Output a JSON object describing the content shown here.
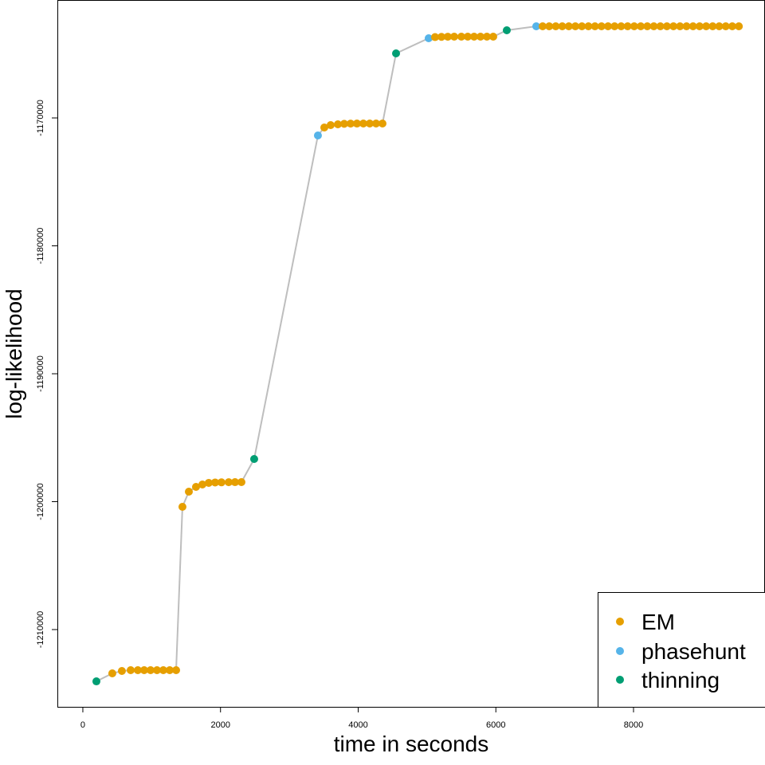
{
  "chart_data": {
    "type": "scatter",
    "title": "",
    "xlabel": "time in seconds",
    "ylabel": "log-likelihood",
    "xlim": [
      -370,
      9910
    ],
    "ylim": [
      -1216040,
      -1160780
    ],
    "xticks": [
      0,
      2000,
      4000,
      6000,
      8000
    ],
    "xtick_labels": [
      "0",
      "2000",
      "4000",
      "6000",
      "8000"
    ],
    "yticks": [
      -1210000,
      -1200000,
      -1190000,
      -1180000,
      -1170000
    ],
    "ytick_labels": [
      "-1210000",
      "-1200000",
      "-1190000",
      "-1180000",
      "-1170000"
    ],
    "grid": false,
    "line_color": "#bebebe",
    "legend": {
      "placement": "bottom-right",
      "entries": [
        {
          "label": "EM",
          "color": "#E69F00"
        },
        {
          "label": "phasehunt",
          "color": "#56B4E9"
        },
        {
          "label": "thinning",
          "color": "#009E73"
        }
      ]
    },
    "points": [
      [
        197,
        -1214050,
        "thinning"
      ],
      [
        428,
        -1213425,
        "EM"
      ],
      [
        567,
        -1213237,
        "EM"
      ],
      [
        695,
        -1213174,
        "EM"
      ],
      [
        799,
        -1213174,
        "EM"
      ],
      [
        891,
        -1213174,
        "EM"
      ],
      [
        984,
        -1213174,
        "EM"
      ],
      [
        1077,
        -1213174,
        "EM"
      ],
      [
        1169,
        -1213174,
        "EM"
      ],
      [
        1262,
        -1213174,
        "EM"
      ],
      [
        1355,
        -1213174,
        "EM"
      ],
      [
        1447,
        -1200402,
        "EM"
      ],
      [
        1540,
        -1199219,
        "EM"
      ],
      [
        1644,
        -1198845,
        "EM"
      ],
      [
        1737,
        -1198658,
        "EM"
      ],
      [
        1829,
        -1198530,
        "EM"
      ],
      [
        1922,
        -1198500,
        "EM"
      ],
      [
        2014,
        -1198490,
        "EM"
      ],
      [
        2119,
        -1198480,
        "EM"
      ],
      [
        2211,
        -1198475,
        "EM"
      ],
      [
        2304,
        -1198471,
        "EM"
      ],
      [
        2489,
        -1196664,
        "thinning"
      ],
      [
        3415,
        -1171371,
        "phasehunt"
      ],
      [
        3508,
        -1170748,
        "EM"
      ],
      [
        3600,
        -1170561,
        "EM"
      ],
      [
        3705,
        -1170498,
        "EM"
      ],
      [
        3797,
        -1170460,
        "EM"
      ],
      [
        3890,
        -1170445,
        "EM"
      ],
      [
        3982,
        -1170440,
        "EM"
      ],
      [
        4075,
        -1170438,
        "EM"
      ],
      [
        4168,
        -1170437,
        "EM"
      ],
      [
        4260,
        -1170436,
        "EM"
      ],
      [
        4353,
        -1170436,
        "EM"
      ],
      [
        4550,
        -1164954,
        "thinning"
      ],
      [
        5024,
        -1163770,
        "phasehunt"
      ],
      [
        5117,
        -1163680,
        "EM"
      ],
      [
        5210,
        -1163660,
        "EM"
      ],
      [
        5302,
        -1163650,
        "EM"
      ],
      [
        5395,
        -1163647,
        "EM"
      ],
      [
        5499,
        -1163646,
        "EM"
      ],
      [
        5592,
        -1163645,
        "EM"
      ],
      [
        5684,
        -1163645,
        "EM"
      ],
      [
        5777,
        -1163645,
        "EM"
      ],
      [
        5870,
        -1163645,
        "EM"
      ],
      [
        5962,
        -1163645,
        "EM"
      ],
      [
        6159,
        -1163147,
        "thinning"
      ],
      [
        6587,
        -1162836,
        "phasehunt"
      ],
      [
        6680,
        -1162836,
        "EM"
      ],
      [
        6775,
        -1162836,
        "EM"
      ],
      [
        6870,
        -1162836,
        "EM"
      ],
      [
        6965,
        -1162836,
        "EM"
      ],
      [
        7060,
        -1162836,
        "EM"
      ],
      [
        7155,
        -1162836,
        "EM"
      ],
      [
        7250,
        -1162836,
        "EM"
      ],
      [
        7345,
        -1162836,
        "EM"
      ],
      [
        7440,
        -1162836,
        "EM"
      ],
      [
        7535,
        -1162836,
        "EM"
      ],
      [
        7630,
        -1162836,
        "EM"
      ],
      [
        7725,
        -1162836,
        "EM"
      ],
      [
        7820,
        -1162836,
        "EM"
      ],
      [
        7915,
        -1162836,
        "EM"
      ],
      [
        8010,
        -1162836,
        "EM"
      ],
      [
        8105,
        -1162836,
        "EM"
      ],
      [
        8200,
        -1162836,
        "EM"
      ],
      [
        8295,
        -1162836,
        "EM"
      ],
      [
        8390,
        -1162836,
        "EM"
      ],
      [
        8485,
        -1162836,
        "EM"
      ],
      [
        8580,
        -1162836,
        "EM"
      ],
      [
        8675,
        -1162836,
        "EM"
      ],
      [
        8770,
        -1162836,
        "EM"
      ],
      [
        8865,
        -1162836,
        "EM"
      ],
      [
        8960,
        -1162836,
        "EM"
      ],
      [
        9055,
        -1162836,
        "EM"
      ],
      [
        9150,
        -1162836,
        "EM"
      ],
      [
        9245,
        -1162836,
        "EM"
      ],
      [
        9340,
        -1162836,
        "EM"
      ],
      [
        9435,
        -1162836,
        "EM"
      ],
      [
        9530,
        -1162836,
        "EM"
      ]
    ]
  }
}
